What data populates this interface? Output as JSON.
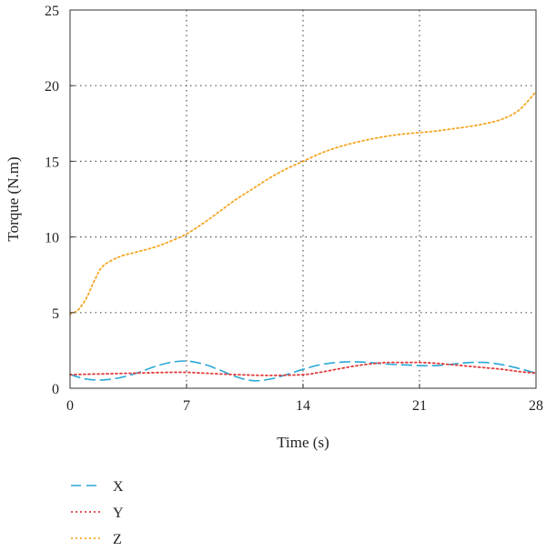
{
  "chart_data": {
    "type": "line",
    "xlabel": "Time (s)",
    "ylabel": "Torque (N.m)",
    "xlim": [
      0,
      28
    ],
    "ylim": [
      0,
      25
    ],
    "xticks": [
      0,
      7,
      14,
      21,
      28
    ],
    "yticks": [
      0,
      5,
      10,
      15,
      20,
      25
    ],
    "grid": true,
    "legend_position": "bottom-left",
    "series": [
      {
        "name": "X",
        "color": "#2aa7d6",
        "dash": "dashed",
        "points": [
          [
            0,
            0.9
          ],
          [
            1,
            0.6
          ],
          [
            2,
            0.55
          ],
          [
            3,
            0.7
          ],
          [
            4,
            1.0
          ],
          [
            5,
            1.4
          ],
          [
            6,
            1.7
          ],
          [
            7,
            1.8
          ],
          [
            8,
            1.6
          ],
          [
            9,
            1.2
          ],
          [
            10,
            0.75
          ],
          [
            11,
            0.5
          ],
          [
            12,
            0.6
          ],
          [
            13,
            0.9
          ],
          [
            14,
            1.25
          ],
          [
            15,
            1.55
          ],
          [
            16,
            1.7
          ],
          [
            17,
            1.75
          ],
          [
            18,
            1.7
          ],
          [
            19,
            1.6
          ],
          [
            20,
            1.55
          ],
          [
            21,
            1.5
          ],
          [
            22,
            1.5
          ],
          [
            23,
            1.6
          ],
          [
            24,
            1.7
          ],
          [
            25,
            1.7
          ],
          [
            26,
            1.55
          ],
          [
            27,
            1.3
          ],
          [
            28,
            1.0
          ]
        ]
      },
      {
        "name": "Y",
        "color": "#e23b3b",
        "dash": "dotted",
        "points": [
          [
            0,
            0.9
          ],
          [
            2,
            0.95
          ],
          [
            4,
            1.0
          ],
          [
            6,
            1.05
          ],
          [
            7,
            1.05
          ],
          [
            8,
            1.0
          ],
          [
            10,
            0.9
          ],
          [
            12,
            0.85
          ],
          [
            14,
            0.9
          ],
          [
            15,
            1.05
          ],
          [
            16,
            1.25
          ],
          [
            17,
            1.45
          ],
          [
            18,
            1.6
          ],
          [
            19,
            1.7
          ],
          [
            20,
            1.7
          ],
          [
            21,
            1.7
          ],
          [
            22,
            1.65
          ],
          [
            23,
            1.55
          ],
          [
            24,
            1.45
          ],
          [
            25,
            1.35
          ],
          [
            26,
            1.25
          ],
          [
            27,
            1.1
          ],
          [
            28,
            1.0
          ]
        ]
      },
      {
        "name": "Z",
        "color": "#f5a623",
        "dash": "dotted",
        "points": [
          [
            0,
            4.9
          ],
          [
            0.5,
            5.2
          ],
          [
            1,
            6.0
          ],
          [
            1.5,
            7.2
          ],
          [
            2,
            8.1
          ],
          [
            3,
            8.7
          ],
          [
            4,
            9.0
          ],
          [
            5,
            9.3
          ],
          [
            6,
            9.7
          ],
          [
            7,
            10.2
          ],
          [
            8,
            10.9
          ],
          [
            9,
            11.7
          ],
          [
            10,
            12.5
          ],
          [
            11,
            13.2
          ],
          [
            12,
            13.9
          ],
          [
            13,
            14.5
          ],
          [
            14,
            15.0
          ],
          [
            15,
            15.5
          ],
          [
            16,
            15.9
          ],
          [
            17,
            16.2
          ],
          [
            18,
            16.45
          ],
          [
            19,
            16.65
          ],
          [
            20,
            16.8
          ],
          [
            21,
            16.9
          ],
          [
            22,
            17.0
          ],
          [
            23,
            17.15
          ],
          [
            24,
            17.3
          ],
          [
            25,
            17.5
          ],
          [
            26,
            17.8
          ],
          [
            27,
            18.4
          ],
          [
            28,
            19.6
          ]
        ]
      }
    ]
  }
}
